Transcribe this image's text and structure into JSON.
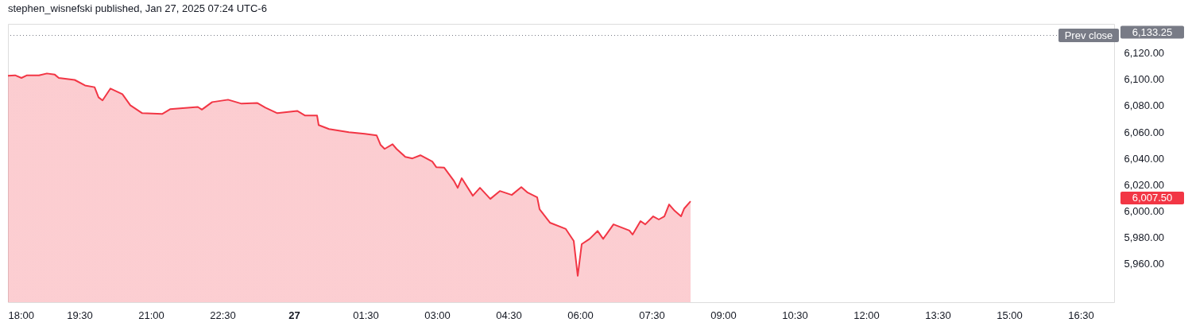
{
  "chart_data": {
    "type": "area",
    "title": "stephen_wisnefski published, Jan 27, 2025 07:24 UTC-6",
    "x": [
      "2025-01-26T18:00",
      "2025-01-26T18:09",
      "2025-01-26T18:17",
      "2025-01-26T18:24",
      "2025-01-26T18:39",
      "2025-01-26T18:49",
      "2025-01-26T18:59",
      "2025-01-26T19:04",
      "2025-01-26T19:24",
      "2025-01-26T19:37",
      "2025-01-26T19:49",
      "2025-01-26T19:54",
      "2025-01-26T19:59",
      "2025-01-26T20:09",
      "2025-01-26T20:24",
      "2025-01-26T20:34",
      "2025-01-26T20:49",
      "2025-01-26T21:14",
      "2025-01-26T21:24",
      "2025-01-26T21:59",
      "2025-01-26T22:04",
      "2025-01-26T22:17",
      "2025-01-26T22:37",
      "2025-01-26T22:54",
      "2025-01-26T23:14",
      "2025-01-26T23:24",
      "2025-01-26T23:39",
      "2025-01-27T00:04",
      "2025-01-27T00:14",
      "2025-01-27T00:29",
      "2025-01-27T00:31",
      "2025-01-27T00:44",
      "2025-01-27T01:09",
      "2025-01-27T01:29",
      "2025-01-27T01:44",
      "2025-01-27T01:49",
      "2025-01-27T01:54",
      "2025-01-27T02:04",
      "2025-01-27T02:09",
      "2025-01-27T02:20",
      "2025-01-27T02:29",
      "2025-01-27T02:39",
      "2025-01-27T02:54",
      "2025-01-27T02:59",
      "2025-01-27T03:09",
      "2025-01-27T03:21",
      "2025-01-27T03:26",
      "2025-01-27T03:31",
      "2025-01-27T03:45",
      "2025-01-27T03:54",
      "2025-01-27T04:07",
      "2025-01-27T04:19",
      "2025-01-27T04:34",
      "2025-01-27T04:46",
      "2025-01-27T04:54",
      "2025-01-27T05:06",
      "2025-01-27T05:09",
      "2025-01-27T05:22",
      "2025-01-27T05:42",
      "2025-01-27T05:52",
      "2025-01-27T05:57",
      "2025-01-27T06:02",
      "2025-01-27T06:12",
      "2025-01-27T06:22",
      "2025-01-27T06:29",
      "2025-01-27T06:42",
      "2025-01-27T07:02",
      "2025-01-27T07:06",
      "2025-01-27T07:16",
      "2025-01-27T07:22",
      "2025-01-27T07:32",
      "2025-01-27T07:39",
      "2025-01-27T07:46",
      "2025-01-27T07:52",
      "2025-01-27T07:59",
      "2025-01-27T08:07",
      "2025-01-27T08:11",
      "2025-01-27T08:19"
    ],
    "series": [
      {
        "color": "#f23645",
        "values": [
          6102.6,
          6103,
          6101,
          6103,
          6103,
          6104.4,
          6103.5,
          6101,
          6099.5,
          6095.3,
          6094,
          6086.3,
          6084,
          6093,
          6088.7,
          6080.3,
          6074.3,
          6073.7,
          6077.3,
          6079,
          6077,
          6082.7,
          6084.5,
          6081.5,
          6082,
          6078.5,
          6074.3,
          6076,
          6072.5,
          6072.5,
          6065.3,
          6062.3,
          6059.8,
          6058.6,
          6057.4,
          6050.2,
          6047.2,
          6050.8,
          6047.2,
          6041.2,
          6040,
          6042.4,
          6037.6,
          6033.4,
          6033,
          6023.2,
          6017.7,
          6025,
          6011.7,
          6017.7,
          6009.3,
          6015.3,
          6012.3,
          6018.3,
          6014.1,
          6010.5,
          6001.5,
          5991.3,
          5986.5,
          5977.4,
          5951,
          5975,
          5979,
          5985,
          5979,
          5990,
          5985.3,
          5982.3,
          5992.5,
          5990,
          5996.1,
          5993.7,
          5996.1,
          6005.1,
          6000.3,
          5996.1,
          6002,
          6007.5
        ]
      }
    ],
    "xlim": [
      "2025-01-26T18:00",
      "2025-01-27T17:12"
    ],
    "xticks": [
      {
        "value": "2025-01-26T18:00",
        "label": "18:00"
      },
      {
        "value": "2025-01-26T19:30",
        "label": "19:30"
      },
      {
        "value": "2025-01-26T21:00",
        "label": "21:00"
      },
      {
        "value": "2025-01-26T22:30",
        "label": "22:30"
      },
      {
        "value": "2025-01-27T00:00",
        "label": "27"
      },
      {
        "value": "2025-01-27T01:30",
        "label": "01:30"
      },
      {
        "value": "2025-01-27T03:00",
        "label": "03:00"
      },
      {
        "value": "2025-01-27T04:30",
        "label": "04:30"
      },
      {
        "value": "2025-01-27T06:00",
        "label": "06:00"
      },
      {
        "value": "2025-01-27T07:30",
        "label": "07:30"
      },
      {
        "value": "2025-01-27T09:00",
        "label": "09:00"
      },
      {
        "value": "2025-01-27T10:30",
        "label": "10:30"
      },
      {
        "value": "2025-01-27T12:00",
        "label": "12:00"
      },
      {
        "value": "2025-01-27T13:30",
        "label": "13:30"
      },
      {
        "value": "2025-01-27T15:00",
        "label": "15:00"
      },
      {
        "value": "2025-01-27T16:30",
        "label": "16:30"
      }
    ],
    "ylim": [
      5931,
      6142
    ],
    "yticks": [
      {
        "value": 5960,
        "label": "5,960.00"
      },
      {
        "value": 5980,
        "label": "5,980.00"
      },
      {
        "value": 6000,
        "label": "6,000.00"
      },
      {
        "value": 6020,
        "label": "6,020.00"
      },
      {
        "value": 6040,
        "label": "6,040.00"
      },
      {
        "value": 6060,
        "label": "6,060.00"
      },
      {
        "value": 6080,
        "label": "6,080.00"
      },
      {
        "value": 6100,
        "label": "6,100.00"
      },
      {
        "value": 6120,
        "label": "6,120.00"
      }
    ],
    "ref_lines": [
      {
        "axis": "y",
        "value": 6133.25,
        "label": "Prev close",
        "color": "#787b86",
        "line_style": "dotted"
      }
    ],
    "annotations": [
      "6,133.25",
      "6,007.50"
    ],
    "grid": false
  }
}
